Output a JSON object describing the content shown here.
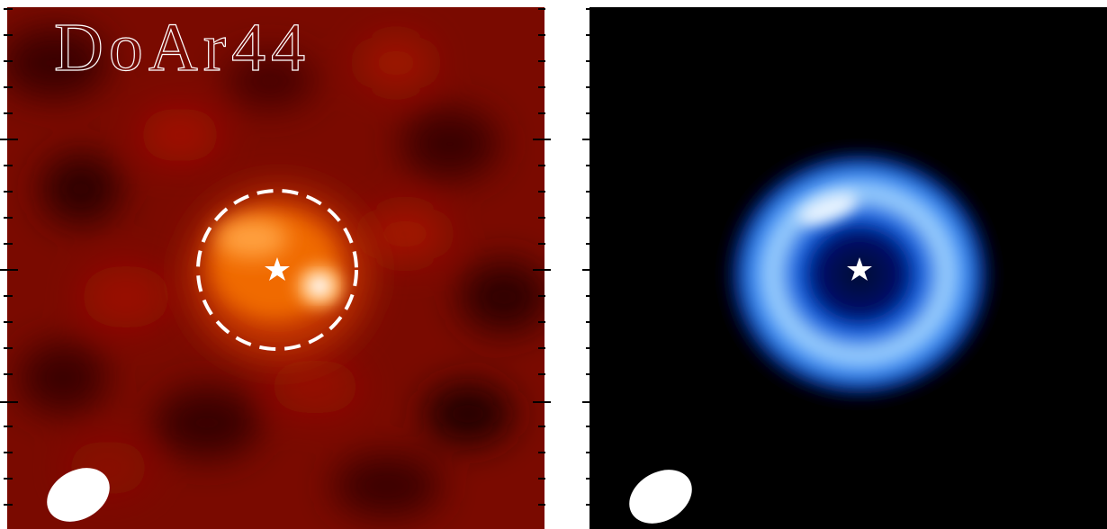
{
  "left_panel": {
    "label": "DoAr44"
  }
}
